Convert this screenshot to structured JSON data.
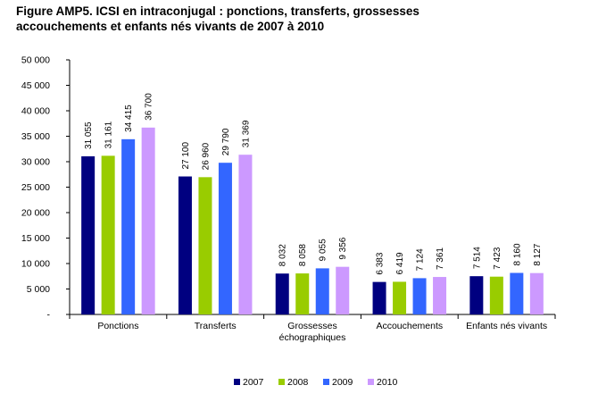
{
  "title": {
    "line1": "Figure AMP5. ICSI en intraconjugal : ponctions, transferts, grossesses",
    "line2": "accouchements et enfants nés vivants de 2007 à 2010"
  },
  "chart_data": {
    "type": "bar",
    "title": "Figure AMP5. ICSI en intraconjugal : ponctions, transferts, grossesses accouchements et enfants nés vivants de 2007 à 2010",
    "categories": [
      [
        "Ponctions"
      ],
      [
        "Transferts"
      ],
      [
        "Grossesses",
        "échographiques"
      ],
      [
        "Accouchements"
      ],
      [
        "Enfants nés vivants"
      ]
    ],
    "series": [
      {
        "name": "2007",
        "color": "#000080",
        "values": [
          31055,
          27100,
          8032,
          6383,
          7514
        ],
        "labels": [
          "31 055",
          "27 100",
          "8 032",
          "6 383",
          "7 514"
        ]
      },
      {
        "name": "2008",
        "color": "#99CC00",
        "values": [
          31161,
          26960,
          8058,
          6419,
          7423
        ],
        "labels": [
          "31 161",
          "26 960",
          "8 058",
          "6 419",
          "7 423"
        ]
      },
      {
        "name": "2009",
        "color": "#3366FF",
        "values": [
          34415,
          29790,
          9055,
          7124,
          8160
        ],
        "labels": [
          "34 415",
          "29 790",
          "9 055",
          "7 124",
          "8 160"
        ]
      },
      {
        "name": "2010",
        "color": "#CC99FF",
        "values": [
          36700,
          31369,
          9356,
          7361,
          8127
        ],
        "labels": [
          "36 700",
          "31 369",
          "9 356",
          "7 361",
          "8 127"
        ]
      }
    ],
    "ylim": [
      0,
      50000
    ],
    "yticks": [
      0,
      5000,
      10000,
      15000,
      20000,
      25000,
      30000,
      35000,
      40000,
      45000,
      50000
    ],
    "ytick_labels": [
      "-",
      "5 000",
      "10 000",
      "15 000",
      "20 000",
      "25 000",
      "30 000",
      "35 000",
      "40 000",
      "45 000",
      "50 000"
    ],
    "xlabel": "",
    "ylabel": "",
    "grid": false,
    "legend": "bottom"
  }
}
